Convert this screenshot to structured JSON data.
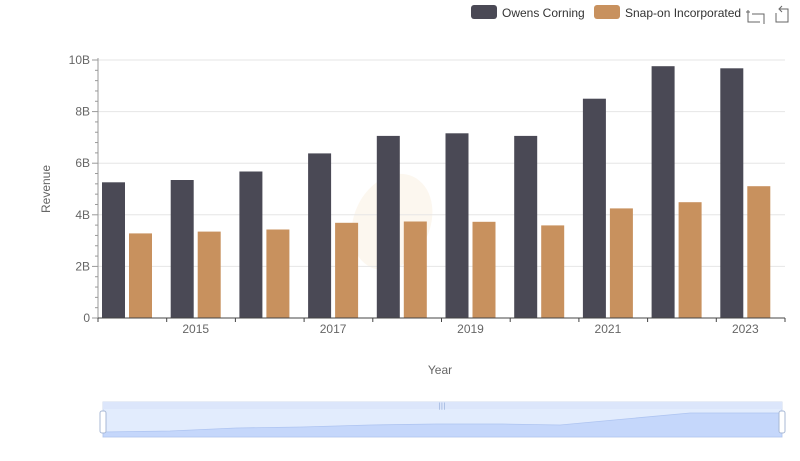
{
  "chart_data": {
    "type": "bar",
    "xlabel": "Year",
    "ylabel": "Revenue",
    "x": [
      2014,
      2015,
      2016,
      2017,
      2018,
      2019,
      2020,
      2021,
      2022,
      2023
    ],
    "x_tick_labels": [
      "2015",
      "2017",
      "2019",
      "2021",
      "2023"
    ],
    "y_tick_labels": [
      "0",
      "2B",
      "4B",
      "6B",
      "8B",
      "10B"
    ],
    "ylim": [
      0,
      10000000000
    ],
    "grid": true,
    "legend_position": "top-right",
    "series": [
      {
        "name": "Owens Corning",
        "color": "#4a4955",
        "values": [
          5260000000,
          5350000000,
          5680000000,
          6380000000,
          7060000000,
          7160000000,
          7060000000,
          8500000000,
          9760000000,
          9680000000
        ]
      },
      {
        "name": "Snap-on Incorporated",
        "color": "#c8915e",
        "values": [
          3280000000,
          3350000000,
          3430000000,
          3690000000,
          3740000000,
          3730000000,
          3590000000,
          4250000000,
          4490000000,
          5110000000
        ]
      }
    ]
  },
  "toolbox": {
    "icons": [
      "zoom-icon",
      "restore-icon"
    ]
  },
  "data_zoom": {
    "range_start": 0,
    "range_end": 1
  }
}
